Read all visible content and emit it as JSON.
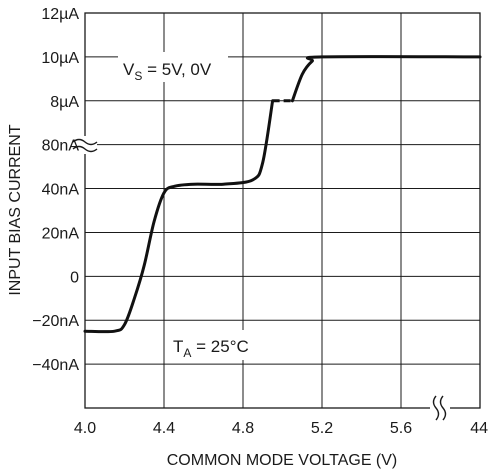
{
  "chart_data": {
    "type": "line",
    "xlabel": "COMMON MODE VOLTAGE (V)",
    "ylabel": "INPUT BIAS CURRENT",
    "x_ticks": [
      "4.0",
      "4.4",
      "4.8",
      "5.2",
      "5.6",
      "44"
    ],
    "xlim": [
      4.0,
      6.0
    ],
    "y_ticks": [
      "12µA",
      "10µA",
      "8µA",
      "80nA",
      "40nA",
      "20nA",
      "0",
      "−20nA",
      "−40nA"
    ],
    "y_axis_note": "broken axis: lower section nA, upper section µA",
    "grid": true,
    "annotations": [
      {
        "main": "V",
        "sub": "S",
        "rest": " = 5V, 0V"
      },
      {
        "main": "T",
        "sub": "A",
        "rest": " = 25°C"
      }
    ],
    "series": [
      {
        "points": [
          {
            "x": 4.0,
            "y": "-25nA"
          },
          {
            "x": 4.15,
            "y": "-25nA"
          },
          {
            "x": 4.2,
            "y": "-22nA"
          },
          {
            "x": 4.25,
            "y": "-10nA"
          },
          {
            "x": 4.3,
            "y": "5nA"
          },
          {
            "x": 4.35,
            "y": "25nA"
          },
          {
            "x": 4.4,
            "y": "38nA"
          },
          {
            "x": 4.45,
            "y": "41nA"
          },
          {
            "x": 4.55,
            "y": "42nA"
          },
          {
            "x": 4.7,
            "y": "42nA"
          },
          {
            "x": 4.85,
            "y": "44nA"
          },
          {
            "x": 4.9,
            "y": "52nA"
          },
          {
            "x": 4.95,
            "y": "80nA"
          },
          {
            "x": 5.0,
            "y": "discontinuous"
          },
          {
            "x": 5.05,
            "y": "8µA"
          },
          {
            "x": 5.1,
            "y": "9.2µA"
          },
          {
            "x": 5.15,
            "y": "9.8µA"
          },
          {
            "x": 5.2,
            "y": "10µA"
          },
          {
            "x": 6.0,
            "y": "10µA"
          }
        ]
      }
    ]
  }
}
